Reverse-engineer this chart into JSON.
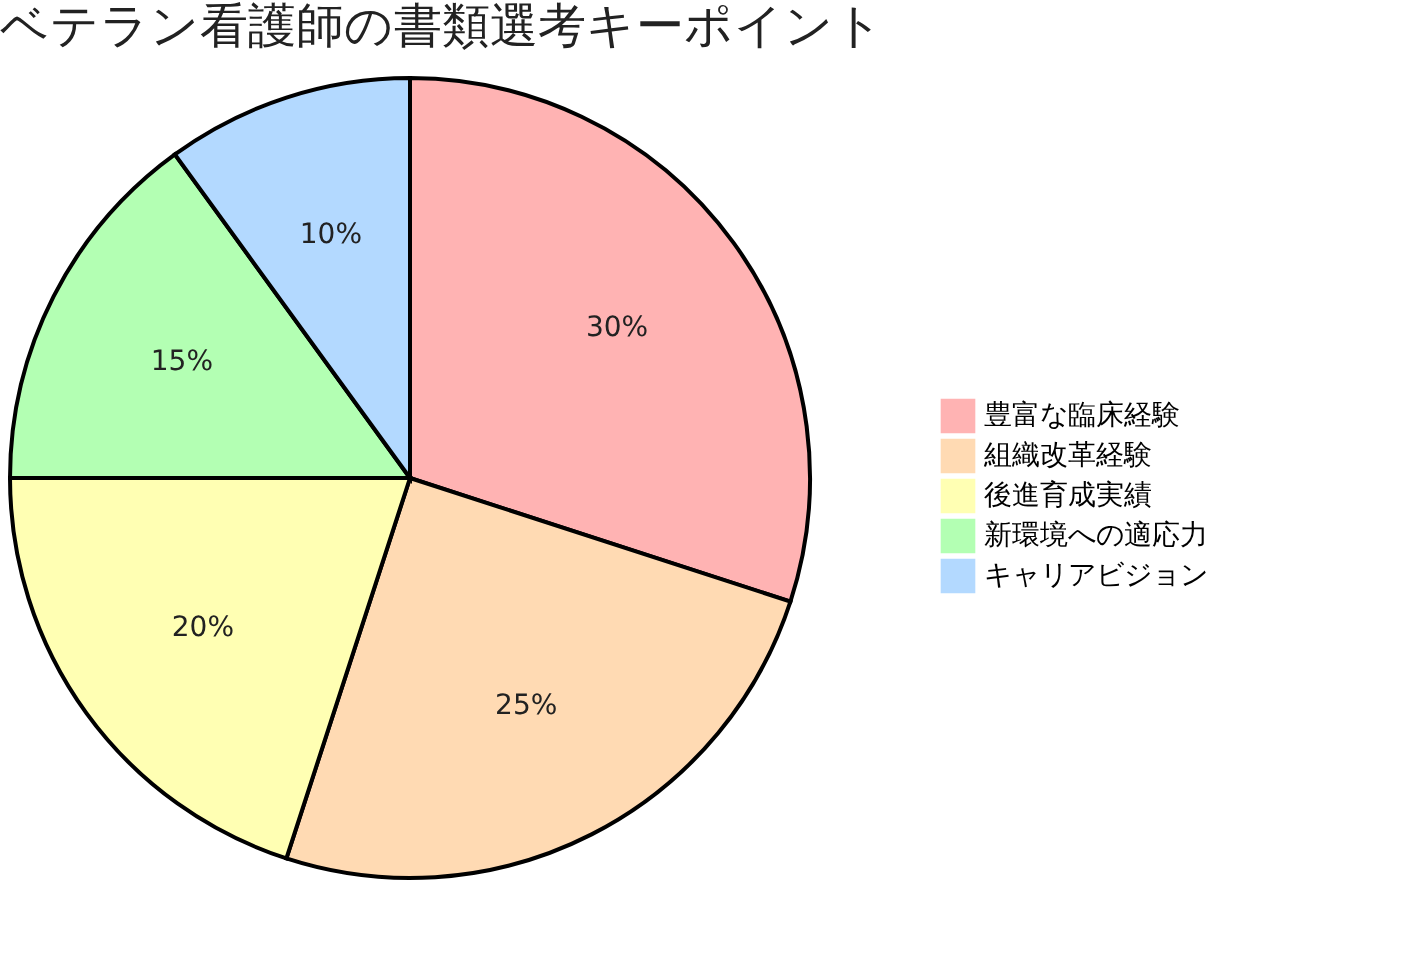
{
  "chart_data": {
    "type": "pie",
    "title": "ベテラン看護師の書類選考キーポイント",
    "categories": [
      "豊富な臨床経験",
      "組織改革経験",
      "後進育成実績",
      "新環境への適応力",
      "キャリアビジョン"
    ],
    "values": [
      30,
      25,
      20,
      15,
      10
    ],
    "colors": [
      "#ffb3b3",
      "#ffdab3",
      "#ffffb3",
      "#b3ffb3",
      "#b3d9ff"
    ],
    "value_labels": [
      "30%",
      "25%",
      "20%",
      "15%",
      "10%"
    ],
    "legend": "right"
  }
}
